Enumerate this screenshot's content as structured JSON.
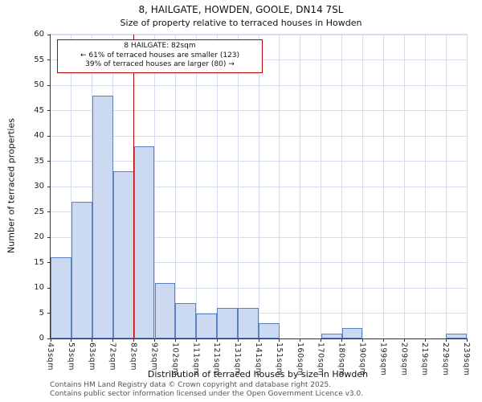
{
  "chart_data": {
    "type": "bar",
    "title": "8, HAILGATE, HOWDEN, GOOLE, DN14 7SL",
    "subtitle": "Size of property relative to terraced houses in Howden",
    "xlabel": "Distribution of terraced houses by size in Howden",
    "ylabel": "Number of terraced properties",
    "ylim": [
      0,
      60
    ],
    "ytick_step": 5,
    "grid": true,
    "tick_labels": [
      "43sqm",
      "53sqm",
      "63sqm",
      "72sqm",
      "82sqm",
      "92sqm",
      "102sqm",
      "111sqm",
      "121sqm",
      "131sqm",
      "141sqm",
      "151sqm",
      "160sqm",
      "170sqm",
      "180sqm",
      "190sqm",
      "199sqm",
      "209sqm",
      "219sqm",
      "229sqm",
      "239sqm"
    ],
    "values": [
      16,
      27,
      48,
      33,
      38,
      11,
      7,
      5,
      6,
      6,
      3,
      0,
      0,
      1,
      2,
      0,
      0,
      0,
      0,
      1
    ],
    "marker": {
      "tick_index": 4,
      "value_label": "82sqm"
    },
    "annotation": {
      "line1": "8 HAILGATE: 82sqm",
      "line2": "← 61% of terraced houses are smaller (123)",
      "line3": "39% of terraced houses are larger (80) →"
    },
    "colors": {
      "bar_fill": "#ccdaf1",
      "bar_border": "#5a82c2",
      "grid": "#d4ddf0",
      "marker": "#bb0000",
      "axis": "#333333"
    }
  },
  "footer": {
    "line1": "Contains HM Land Registry data © Crown copyright and database right 2025.",
    "line2": "Contains public sector information licensed under the Open Government Licence v3.0."
  }
}
